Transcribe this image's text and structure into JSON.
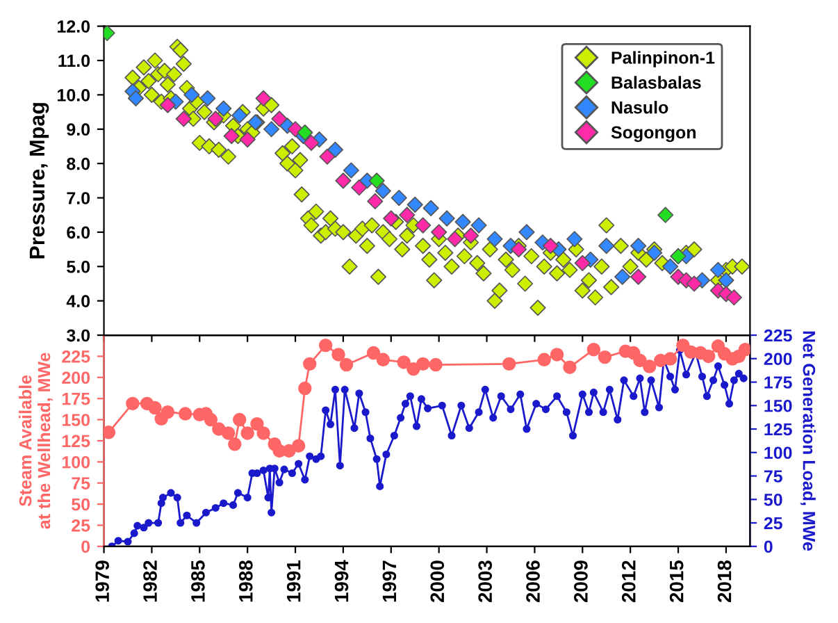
{
  "chart_data": [
    {
      "type": "scatter",
      "ylabel": "Pressure, Mpag",
      "marker": "diamond",
      "legend": "top right",
      "tick_labels": "y",
      "xlim": [
        1979,
        2019.5
      ],
      "xticks": [
        1979,
        1982,
        1985,
        1988,
        1991,
        1994,
        1997,
        2000,
        2003,
        2006,
        2009,
        2012,
        2015,
        2018
      ],
      "ylim": [
        3,
        12
      ],
      "yticks": [
        {
          "value": 3,
          "label": "3.0"
        },
        {
          "value": 4,
          "label": "4.0"
        },
        {
          "value": 5,
          "label": "5.0"
        },
        {
          "value": 6,
          "label": "6.0"
        },
        {
          "value": 7,
          "label": "7.0"
        },
        {
          "value": 8,
          "label": "8.0"
        },
        {
          "value": 9,
          "label": "9.0"
        },
        {
          "value": 10,
          "label": "10.0"
        },
        {
          "value": 11,
          "label": "11.0"
        },
        {
          "value": 12,
          "label": "12.0"
        }
      ],
      "series": [
        {
          "name": "Palinpinon-1",
          "color": "#ccee00",
          "x": [
            1980.8,
            1981.2,
            1981.5,
            1981.8,
            1982.0,
            1982.2,
            1982.4,
            1982.6,
            1982.8,
            1983.0,
            1983.2,
            1983.4,
            1983.6,
            1983.8,
            1984.0,
            1984.2,
            1984.4,
            1984.6,
            1984.8,
            1985.0,
            1985.3,
            1985.6,
            1985.9,
            1986.2,
            1986.5,
            1986.8,
            1987.1,
            1987.4,
            1987.7,
            1988.0,
            1988.3,
            1988.6,
            1989.0,
            1989.5,
            1990.2,
            1990.5,
            1990.8,
            1991.0,
            1991.3,
            1991.4,
            1991.8,
            1992.0,
            1992.3,
            1992.6,
            1992.9,
            1993.2,
            1993.5,
            1994.0,
            1994.4,
            1994.8,
            1995.2,
            1995.5,
            1995.8,
            1996.2,
            1996.5,
            1996.9,
            1997.3,
            1997.7,
            1998.0,
            1998.4,
            1999.0,
            1999.4,
            1999.7,
            2000.0,
            2000.4,
            2000.8,
            2001.2,
            2001.6,
            2002.0,
            2002.4,
            2002.8,
            2003.2,
            2003.5,
            2003.8,
            2004.2,
            2004.6,
            2005.0,
            2005.4,
            2005.8,
            2006.2,
            2006.6,
            2007.0,
            2007.4,
            2007.8,
            2008.2,
            2008.6,
            2009.0,
            2009.4,
            2009.8,
            2010.2,
            2010.5,
            2010.8,
            2011.4,
            2012.0,
            2012.5,
            2013.0,
            2013.5,
            2014.0,
            2015.0,
            2015.5,
            2016.0,
            2017.5,
            2018.0,
            2018.4,
            2019.0
          ],
          "values": [
            10.5,
            10.2,
            10.8,
            10.4,
            10.0,
            11.0,
            10.6,
            9.8,
            10.7,
            10.3,
            9.9,
            10.6,
            11.4,
            11.3,
            10.9,
            10.2,
            9.6,
            9.3,
            9.8,
            8.6,
            9.5,
            8.5,
            9.2,
            8.4,
            9.4,
            8.2,
            9.1,
            8.8,
            9.5,
            9.0,
            8.9,
            9.2,
            9.6,
            9.7,
            8.3,
            8.0,
            8.5,
            7.8,
            8.1,
            7.1,
            6.4,
            6.2,
            6.6,
            5.9,
            6.0,
            6.4,
            6.1,
            6.0,
            5.0,
            5.9,
            6.1,
            5.6,
            6.2,
            4.7,
            6.0,
            5.8,
            6.3,
            5.5,
            5.9,
            6.2,
            5.6,
            5.2,
            4.6,
            5.8,
            5.4,
            5.0,
            5.9,
            5.3,
            5.7,
            5.1,
            4.8,
            5.5,
            4.0,
            4.3,
            5.2,
            4.9,
            5.6,
            4.5,
            5.3,
            3.8,
            5.0,
            5.4,
            4.8,
            5.2,
            4.9,
            5.5,
            4.3,
            4.6,
            4.1,
            5.0,
            6.2,
            4.4,
            5.6,
            5.0,
            5.4,
            5.2,
            5.5,
            5.1,
            5.3,
            5.4,
            5.5,
            4.6,
            4.9,
            5.0,
            5.0
          ]
        },
        {
          "name": "Balasbalas",
          "color": "#22dd22",
          "x": [
            1979.2,
            1991.6,
            1996.1,
            2014.2,
            2015.0
          ],
          "values": [
            11.8,
            8.9,
            7.5,
            6.5,
            5.3
          ]
        },
        {
          "name": "Nasulo",
          "color": "#3388ff",
          "x": [
            1980.8,
            1981.0,
            1983.5,
            1984.5,
            1985.5,
            1986.5,
            1987.5,
            1988.5,
            1989.5,
            1990.5,
            1991.5,
            1992.5,
            1993.5,
            1994.5,
            1995.5,
            1996.5,
            1997.5,
            1998.5,
            1999.5,
            2000.5,
            2001.5,
            2002.5,
            2003.5,
            2004.5,
            2005.5,
            2006.5,
            2007.5,
            2008.5,
            2009.5,
            2010.5,
            2011.5,
            2012.5,
            2013.5,
            2014.5,
            2015.5,
            2016.5,
            2017.5,
            2018.0
          ],
          "values": [
            10.1,
            9.9,
            9.8,
            10.0,
            9.9,
            9.6,
            9.4,
            9.2,
            9.0,
            9.1,
            8.8,
            8.7,
            8.4,
            7.8,
            7.5,
            7.2,
            7.0,
            6.8,
            6.7,
            6.4,
            6.3,
            6.2,
            5.8,
            5.6,
            6.0,
            5.7,
            5.5,
            5.8,
            5.2,
            5.6,
            4.7,
            5.6,
            5.4,
            5.0,
            5.3,
            4.6,
            4.9,
            4.6
          ]
        },
        {
          "name": "Sogongon",
          "color": "#ff2aa8",
          "x": [
            1983.0,
            1984.0,
            1986.0,
            1987.0,
            1988.0,
            1989.0,
            1990.0,
            1991.0,
            1992.0,
            1993.0,
            1994.0,
            1995.0,
            1996.0,
            1997.0,
            1998.0,
            1999.0,
            2000.0,
            2001.0,
            2002.0,
            2005.0,
            2007.0,
            2009.0,
            2012.5,
            2015.0,
            2015.5,
            2016.0,
            2017.5,
            2018.0,
            2018.5
          ],
          "values": [
            9.7,
            9.3,
            9.3,
            8.8,
            8.7,
            9.9,
            9.3,
            9.0,
            8.6,
            8.2,
            7.5,
            7.3,
            6.9,
            6.4,
            6.5,
            6.2,
            6.0,
            5.8,
            5.9,
            5.5,
            5.6,
            5.1,
            4.7,
            4.7,
            4.6,
            4.5,
            4.3,
            4.2,
            4.1
          ]
        }
      ]
    },
    {
      "type": "line",
      "ylabel": "Steam Available\nat the Wellhead, MWe",
      "y2label": "Net Generation Load, MWe",
      "marker": "circle",
      "line_style": "solid",
      "xlim": [
        1979,
        2019.5
      ],
      "xticks": [
        1979,
        1982,
        1985,
        1988,
        1991,
        1994,
        1997,
        2000,
        2003,
        2006,
        2009,
        2012,
        2015,
        2018
      ],
      "ylim": [
        0,
        250
      ],
      "yticks": [
        0,
        25,
        50,
        75,
        100,
        125,
        150,
        175,
        200,
        225
      ],
      "y2lim": [
        0,
        225
      ],
      "y2ticks": [
        0,
        25,
        50,
        75,
        100,
        125,
        150,
        175,
        200,
        225
      ],
      "series": [
        {
          "color": "#ff6666",
          "axis": "y",
          "x": [
            1979.3,
            1980.8,
            1981.7,
            1982.2,
            1982.6,
            1983.0,
            1984.1,
            1985.0,
            1985.4,
            1985.7,
            1986.2,
            1986.8,
            1987.2,
            1987.5,
            1988.0,
            1988.6,
            1989.0,
            1989.7,
            1990.0,
            1990.6,
            1991.2,
            1991.6,
            1991.9,
            1992.9,
            1993.7,
            1994.2,
            1995.9,
            1996.5,
            1997.8,
            1998.4,
            1999.0,
            1999.8,
            2004.4,
            2006.6,
            2007.4,
            2008.2,
            2009.7,
            2010.4,
            2011.7,
            2012.2,
            2012.6,
            2013.2,
            2013.9,
            2014.5,
            2015.3,
            2015.8,
            2016.4,
            2016.9,
            2017.5,
            2017.9,
            2018.4,
            2018.8,
            2019.2
          ],
          "values": [
            135,
            169,
            169,
            164,
            151,
            159,
            157,
            156,
            157,
            150,
            139,
            134,
            121,
            150,
            134,
            145,
            134,
            121,
            113,
            113,
            119,
            187,
            216,
            238,
            227,
            215,
            229,
            221,
            218,
            210,
            216,
            215,
            216,
            221,
            227,
            212,
            233,
            224,
            231,
            229,
            220,
            213,
            220,
            222,
            238,
            230,
            229,
            225,
            237,
            228,
            222,
            225,
            233
          ]
        },
        {
          "color": "#1a1acc",
          "axis": "y2",
          "x": [
            1979.5,
            1979.9,
            1980.5,
            1980.9,
            1981.1,
            1981.5,
            1981.8,
            1982.4,
            1982.6,
            1982.7,
            1983.2,
            1983.6,
            1983.8,
            1984.2,
            1984.8,
            1985.4,
            1986.0,
            1986.5,
            1987.1,
            1987.4,
            1988.0,
            1988.3,
            1988.6,
            1989.0,
            1989.3,
            1989.4,
            1989.5,
            1989.7,
            1990.0,
            1990.3,
            1990.8,
            1991.2,
            1991.6,
            1991.9,
            1992.3,
            1992.6,
            1992.9,
            1993.2,
            1993.5,
            1993.8,
            1994.1,
            1994.7,
            1995.0,
            1995.4,
            1995.7,
            1996.1,
            1996.3,
            1996.7,
            1997.2,
            1997.6,
            1997.9,
            1998.2,
            1998.6,
            1998.9,
            1999.3,
            2000.2,
            2000.8,
            2001.4,
            2001.9,
            2002.5,
            2002.9,
            2003.4,
            2003.9,
            2004.5,
            2005.1,
            2005.5,
            2006.1,
            2006.7,
            2007.4,
            2008.0,
            2008.4,
            2009.0,
            2009.4,
            2009.7,
            2010.3,
            2010.7,
            2011.2,
            2011.6,
            2012.2,
            2012.6,
            2012.9,
            2013.3,
            2013.8,
            2014.1,
            2014.5,
            2014.8,
            2015.1,
            2015.5,
            2016.1,
            2016.5,
            2016.8,
            2017.2,
            2017.5,
            2017.9,
            2018.2,
            2018.5,
            2018.8,
            2019.1
          ],
          "values": [
            0,
            6,
            5,
            14,
            22,
            20,
            25,
            25,
            46,
            52,
            57,
            52,
            25,
            33,
            25,
            36,
            41,
            46,
            44,
            57,
            52,
            78,
            78,
            81,
            52,
            83,
            36,
            83,
            68,
            82,
            78,
            88,
            71,
            96,
            93,
            96,
            145,
            130,
            167,
            86,
            167,
            126,
            163,
            143,
            115,
            93,
            64,
            98,
            118,
            137,
            152,
            160,
            128,
            157,
            147,
            150,
            118,
            150,
            126,
            143,
            167,
            137,
            160,
            146,
            162,
            125,
            152,
            146,
            160,
            143,
            118,
            162,
            143,
            164,
            143,
            167,
            135,
            177,
            160,
            179,
            143,
            177,
            148,
            199,
            181,
            167,
            209,
            183,
            206,
            181,
            160,
            177,
            192,
            172,
            152,
            177,
            184,
            179
          ]
        }
      ]
    }
  ]
}
